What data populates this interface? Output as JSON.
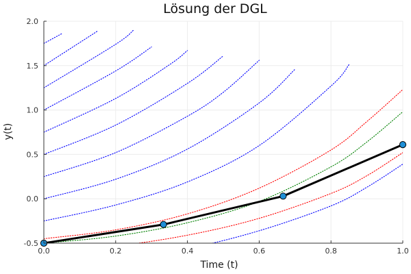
{
  "chart_data": {
    "type": "line",
    "title": "Lösung der DGL",
    "xlabel": "Time (t)",
    "ylabel": "y(t)",
    "xlim": [
      0,
      1
    ],
    "ylim": [
      -0.5,
      2
    ],
    "x_ticks": [
      "0.0",
      "0.2",
      "0.4",
      "0.6",
      "0.8",
      "1.0"
    ],
    "y_ticks": [
      "-0.5",
      "0.0",
      "0.5",
      "1.0",
      "1.5",
      "2.0"
    ],
    "grid": true,
    "legend": "none",
    "colors": {
      "field": "#0000ff",
      "upper_bound": "#ff0000",
      "lower_bound": "#ff0000",
      "exact": "#008000",
      "approx_line": "#000000",
      "approx_marker": "#1f8fd6"
    },
    "series": [
      {
        "role": "field",
        "style": "dotted",
        "x": [
          0,
          0.2,
          0.4,
          0.6,
          0.8,
          0.9,
          1.0
        ],
        "y": [
          -0.75,
          -0.67,
          -0.56,
          -0.36,
          -0.08,
          0.13,
          0.39
        ]
      },
      {
        "role": "field",
        "style": "dotted",
        "x": [
          0,
          0.2,
          0.4,
          0.6,
          0.8,
          0.85
        ],
        "y": [
          -0.25,
          -0.07,
          0.19,
          0.6,
          1.27,
          1.51
        ]
      },
      {
        "role": "field",
        "style": "dotted",
        "x": [
          0,
          0.2,
          0.4,
          0.6,
          0.7
        ],
        "y": [
          0,
          0.22,
          0.56,
          1.08,
          1.46
        ]
      },
      {
        "role": "field",
        "style": "dotted",
        "x": [
          0,
          0.2,
          0.4,
          0.5,
          0.6
        ],
        "y": [
          0.25,
          0.52,
          0.93,
          1.2,
          1.56
        ]
      },
      {
        "role": "field",
        "style": "dotted",
        "x": [
          0,
          0.2,
          0.4,
          0.5
        ],
        "y": [
          0.5,
          0.83,
          1.3,
          1.61
        ]
      },
      {
        "role": "field",
        "style": "dotted",
        "x": [
          0,
          0.2,
          0.35,
          0.4
        ],
        "y": [
          0.75,
          1.13,
          1.51,
          1.67
        ]
      },
      {
        "role": "field",
        "style": "dotted",
        "x": [
          0,
          0.2,
          0.3
        ],
        "y": [
          1.0,
          1.44,
          1.71
        ]
      },
      {
        "role": "field",
        "style": "dotted",
        "x": [
          0,
          0.2,
          0.25
        ],
        "y": [
          1.25,
          1.74,
          1.9
        ]
      },
      {
        "role": "field",
        "style": "dotted",
        "x": [
          0,
          0.15
        ],
        "y": [
          1.5,
          1.89
        ]
      },
      {
        "role": "field",
        "style": "dotted",
        "x": [
          0,
          0.05
        ],
        "y": [
          1.75,
          1.86
        ]
      },
      {
        "role": "upper_bound",
        "style": "dotted",
        "x": [
          0,
          0.2,
          0.4,
          0.6,
          0.8,
          0.9,
          1.0
        ],
        "y": [
          -0.45,
          -0.35,
          -0.17,
          0.12,
          0.55,
          0.87,
          1.23
        ]
      },
      {
        "role": "exact",
        "style": "dotted",
        "x": [
          0,
          0.2,
          0.4,
          0.6,
          0.8,
          0.9,
          1.0
        ],
        "y": [
          -0.5,
          -0.42,
          -0.27,
          -0.03,
          0.36,
          0.64,
          0.98
        ]
      },
      {
        "role": "lower_bound",
        "style": "dotted",
        "x": [
          0,
          0.2,
          0.4,
          0.6,
          0.8,
          0.9,
          1.0
        ],
        "y": [
          -0.58,
          -0.53,
          -0.41,
          -0.22,
          0.06,
          0.26,
          0.52
        ]
      },
      {
        "role": "approx_line",
        "style": "solid",
        "x": [
          0,
          0.3333,
          0.6667,
          1.0
        ],
        "y": [
          -0.5,
          -0.29,
          0.03,
          0.61
        ]
      }
    ],
    "markers": {
      "x": [
        0,
        0.3333,
        0.6667,
        1.0
      ],
      "y": [
        -0.5,
        -0.29,
        0.03,
        0.61
      ]
    }
  }
}
